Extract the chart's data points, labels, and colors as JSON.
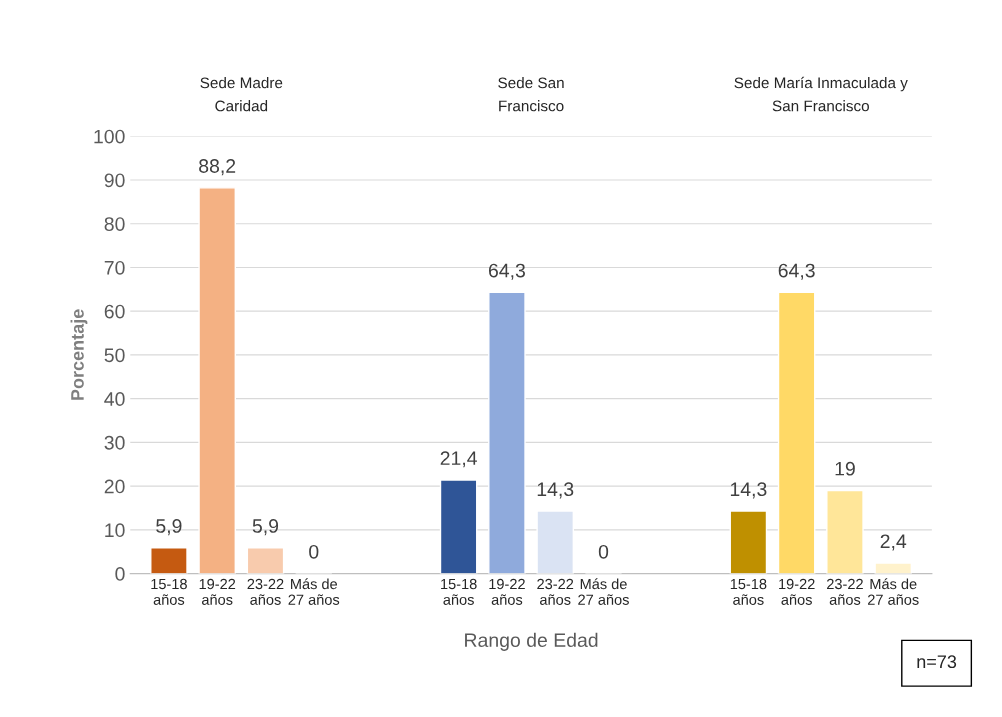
{
  "chart_data": {
    "type": "bar",
    "categories": [
      "15-18\naños",
      "19-22\naños",
      "23-22\naños",
      "Más de\n27 años",
      null,
      null,
      "15-18\naños",
      "19-22\naños",
      "23-22\naños",
      "Más de\n27 años",
      null,
      null,
      "15-18\naños",
      "19-22\naños",
      "23-22\naños",
      "Más de\n27 años"
    ],
    "values": [
      5.9,
      88.2,
      5.9,
      0,
      null,
      null,
      21.4,
      64.3,
      14.3,
      0,
      null,
      null,
      14.3,
      64.3,
      19,
      2.4
    ],
    "value_labels": [
      "5,9",
      "88,2",
      "5,9",
      "0",
      null,
      null,
      "21,4",
      "64,3",
      "14,3",
      "0",
      null,
      null,
      "14,3",
      "64,3",
      "19",
      "2,4"
    ],
    "colors": [
      "#c55a11",
      "#f4b183",
      "#f8cbad",
      null,
      null,
      null,
      "#2f5597",
      "#8faadc",
      "#dae3f3",
      null,
      null,
      null,
      "#bf9000",
      "#ffd966",
      "#ffe699",
      "#fff2cc"
    ],
    "xlabel": "Rango de Edad",
    "ylabel": "Porcentaje",
    "ylim": [
      0,
      100
    ],
    "yticks": [
      0,
      10,
      20,
      30,
      40,
      50,
      60,
      70,
      80,
      90,
      100
    ],
    "grid": "y",
    "annotations": [
      "Sede Madre\nCaridad",
      "Sede San\nFrancisco",
      "Sede María Inmaculada y\nSan Francisco",
      "n=73"
    ]
  }
}
